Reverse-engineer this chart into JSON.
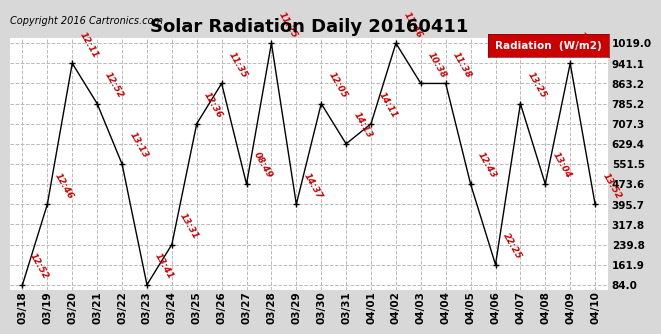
{
  "title": "Solar Radiation Daily 20160411",
  "copyright": "Copyright 2016 Cartronics.com",
  "legend_label": "Radiation  (W/m2)",
  "background_color": "#d8d8d8",
  "plot_bg_color": "#ffffff",
  "line_color": "#cc0000",
  "marker_color": "#000000",
  "dates": [
    "03/18",
    "03/19",
    "03/20",
    "03/21",
    "03/22",
    "03/23",
    "03/24",
    "03/25",
    "03/26",
    "03/27",
    "03/28",
    "03/29",
    "03/30",
    "03/31",
    "04/01",
    "04/02",
    "04/03",
    "04/04",
    "04/05",
    "04/06",
    "04/07",
    "04/08",
    "04/09",
    "04/10"
  ],
  "values": [
    84.0,
    395.7,
    941.1,
    785.2,
    551.5,
    84.0,
    239.8,
    707.3,
    863.2,
    473.6,
    1019.0,
    395.7,
    785.2,
    629.4,
    707.3,
    1019.0,
    863.2,
    863.2,
    473.6,
    161.9,
    785.2,
    473.6,
    941.1,
    395.7
  ],
  "labels": [
    "12:52",
    "12:46",
    "12:11",
    "12:52",
    "13:13",
    "13:41",
    "13:31",
    "12:36",
    "11:35",
    "08:49",
    "11:25",
    "14:37",
    "12:05",
    "14:13",
    "14:11",
    "11:46",
    "10:38",
    "11:38",
    "12:43",
    "22:25",
    "13:25",
    "13:04",
    "12:43",
    "13:52"
  ],
  "ytick_values": [
    84.0,
    161.9,
    239.8,
    317.8,
    395.7,
    473.6,
    551.5,
    629.4,
    707.3,
    785.2,
    863.2,
    941.1,
    1019.0
  ],
  "ymin": 84.0,
  "ymax": 1019.0,
  "legend_bg": "#cc0000",
  "legend_text_color": "#ffffff",
  "label_rotation": -60,
  "label_fontsize": 6.5,
  "axis_fontsize": 7.5,
  "title_fontsize": 13,
  "copyright_fontsize": 7
}
